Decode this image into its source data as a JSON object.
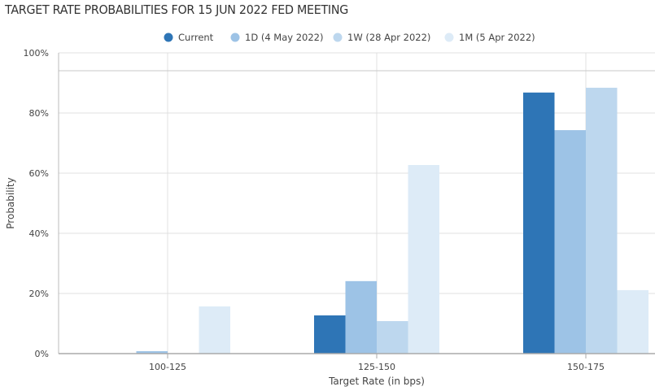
{
  "chart_data": {
    "type": "bar",
    "title": "TARGET RATE PROBABILITIES FOR 15 JUN 2022 FED MEETING",
    "xlabel": "Target Rate (in bps)",
    "ylabel": "Probability",
    "categories": [
      "100-125",
      "125-150",
      "150-175"
    ],
    "ylim": [
      0,
      100
    ],
    "yticks": [
      "0%",
      "20%",
      "40%",
      "60%",
      "80%",
      "100%"
    ],
    "grid": true,
    "legend_position": "top",
    "series": [
      {
        "name": "Current",
        "color": "#2e75b6",
        "values": [
          0,
          12.7,
          86.8
        ]
      },
      {
        "name": "1D (4 May 2022)",
        "color": "#9dc3e6",
        "values": [
          0.8,
          24.1,
          74.3
        ]
      },
      {
        "name": "1W (28 Apr 2022)",
        "color": "#bdd7ee",
        "values": [
          0,
          10.8,
          88.4
        ]
      },
      {
        "name": "1M (5 Apr 2022)",
        "color": "#ddebf7",
        "values": [
          15.7,
          62.7,
          21.1
        ]
      }
    ]
  }
}
